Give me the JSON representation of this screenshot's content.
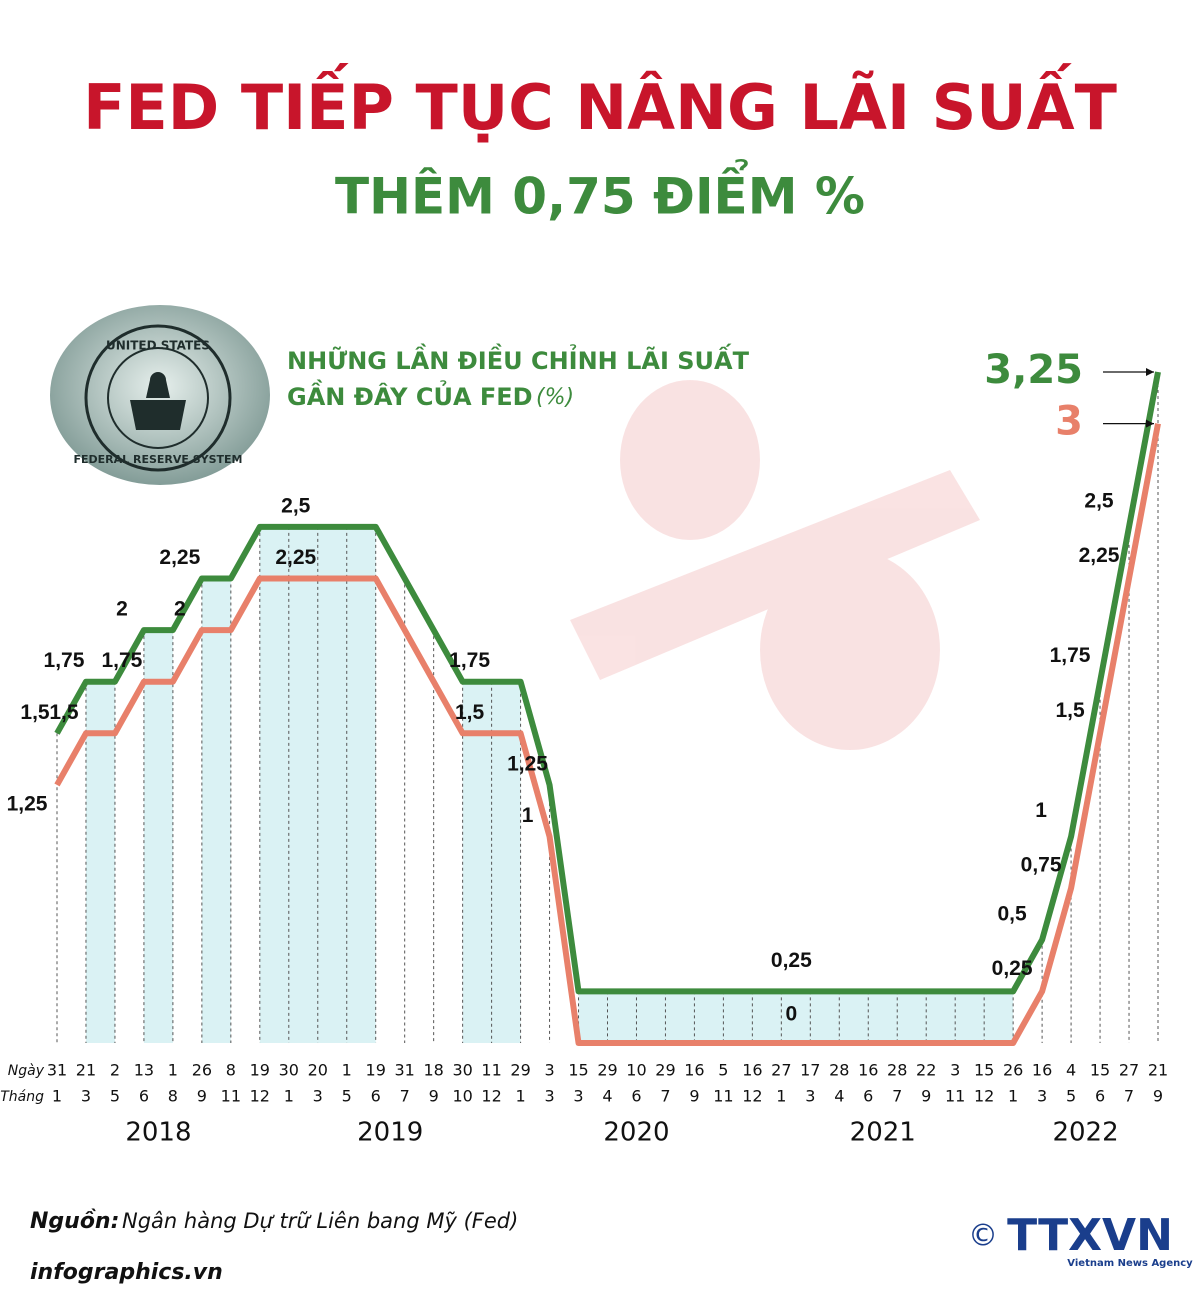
{
  "chart_data": {
    "type": "line",
    "title": "FED TIẾP TỤC NÂNG LÃI SUẤT",
    "subtitle": "THÊM 0,75 ĐIỂM %",
    "chart_title": [
      "NHỮNG LẦN ĐIỀU CHỈNH LÃI SUẤT",
      "GẦN ĐÂY CỦA FED"
    ],
    "unit": "(%)",
    "day_label": "Ngày",
    "month_label": "Tháng",
    "days": [
      31,
      21,
      2,
      13,
      1,
      26,
      8,
      19,
      30,
      20,
      1,
      19,
      31,
      18,
      30,
      11,
      29,
      3,
      15,
      29,
      10,
      29,
      16,
      5,
      16,
      27,
      17,
      28,
      16,
      28,
      22,
      3,
      15,
      26,
      16,
      4,
      15,
      27,
      21
    ],
    "months": [
      1,
      3,
      5,
      6,
      8,
      9,
      11,
      12,
      1,
      3,
      5,
      6,
      7,
      9,
      10,
      12,
      1,
      3,
      3,
      4,
      6,
      7,
      9,
      11,
      12,
      1,
      3,
      4,
      6,
      7,
      9,
      11,
      12,
      1,
      3,
      5,
      6,
      7,
      9
    ],
    "years": [
      "2018",
      "2019",
      "2020",
      "2021",
      "2022"
    ],
    "ylim": [
      0,
      3.25
    ],
    "series": [
      {
        "color": "#3d8b3d",
        "values": [
          1.5,
          1.75,
          1.75,
          2,
          2,
          2.25,
          2.25,
          2.5,
          2.5,
          2.5,
          2.5,
          2.5,
          2.25,
          2,
          1.75,
          1.75,
          1.75,
          1.25,
          0.25,
          0.25,
          0.25,
          0.25,
          0.25,
          0.25,
          0.25,
          0.25,
          0.25,
          0.25,
          0.25,
          0.25,
          0.25,
          0.25,
          0.25,
          0.25,
          0.5,
          1,
          1.75,
          2.5,
          3.25
        ],
        "value_labels": [
          "1,5",
          "1,75",
          null,
          "2",
          null,
          "2,25",
          null,
          null,
          null,
          "2,5",
          null,
          null,
          null,
          null,
          null,
          "1,75",
          null,
          "1,25",
          null,
          null,
          null,
          null,
          null,
          null,
          null,
          "0,25",
          null,
          null,
          null,
          null,
          null,
          null,
          null,
          null,
          "0,5",
          "1",
          "1,75",
          "2,5",
          "3,25"
        ]
      },
      {
        "color": "#e8806a",
        "values": [
          1.25,
          1.5,
          1.5,
          1.75,
          1.75,
          2,
          2,
          2.25,
          2.25,
          2.25,
          2.25,
          2.25,
          2,
          1.75,
          1.5,
          1.5,
          1.5,
          1,
          0,
          0,
          0,
          0,
          0,
          0,
          0,
          0,
          0,
          0,
          0,
          0,
          0,
          0,
          0,
          0,
          0.25,
          0.75,
          1.5,
          2.25,
          3
        ],
        "value_labels": [
          "1,25",
          "1,5",
          null,
          "1,75",
          null,
          "2",
          null,
          null,
          null,
          "2,25",
          null,
          null,
          null,
          null,
          null,
          "1,5",
          null,
          "1",
          null,
          null,
          null,
          null,
          null,
          null,
          null,
          "0",
          null,
          null,
          null,
          null,
          null,
          null,
          null,
          null,
          "0,25",
          "0,75",
          "1,5",
          "2,25",
          "3"
        ]
      }
    ],
    "seal": [
      "UNITED STATES",
      "FEDERAL RESERVE SYSTEM"
    ],
    "source_label": "Nguồn:",
    "source": "Ngân hàng Dự trữ Liên bang Mỹ (Fed)",
    "website": "infographics.vn",
    "logo": {
      "copyright": "©",
      "name": "TTXVN",
      "tagline": "Vietnam News Agency"
    }
  }
}
